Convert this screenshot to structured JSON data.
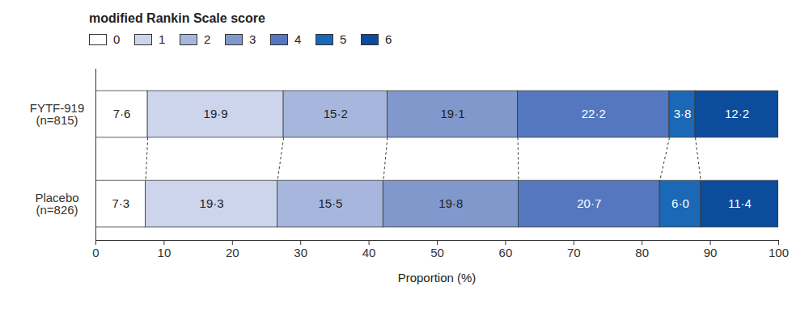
{
  "chart_data": {
    "type": "bar",
    "orientation": "horizontal",
    "stacked": true,
    "data_labels": true,
    "legend": "top-left",
    "legend_title": "modified Rankin Scale score",
    "categories": [
      "FYTF-919\n(n=815)",
      "Placebo\n(n=826)"
    ],
    "xlabel": "Proportion (%)",
    "xlim": [
      0,
      100
    ],
    "xticks": [
      0,
      10,
      20,
      30,
      40,
      50,
      60,
      70,
      80,
      90,
      100
    ],
    "series": [
      {
        "name": "0",
        "color": "#ffffff",
        "values": [
          7.6,
          7.3
        ],
        "value_labels": [
          "7·6",
          "7·3"
        ]
      },
      {
        "name": "1",
        "color": "#ccd5ec",
        "values": [
          19.9,
          19.3
        ],
        "value_labels": [
          "19·9",
          "19·3"
        ]
      },
      {
        "name": "2",
        "color": "#a6b6dc",
        "values": [
          15.2,
          15.5
        ],
        "value_labels": [
          "15·2",
          "15·5"
        ]
      },
      {
        "name": "3",
        "color": "#8198cc",
        "values": [
          19.1,
          19.8
        ],
        "value_labels": [
          "19·1",
          "19·8"
        ]
      },
      {
        "name": "4",
        "color": "#5577bf",
        "values": [
          22.2,
          20.7
        ],
        "value_labels": [
          "22·2",
          "20·7"
        ]
      },
      {
        "name": "5",
        "color": "#1a68b6",
        "values": [
          3.8,
          6.0
        ],
        "value_labels": [
          "3·8",
          "6·0"
        ]
      },
      {
        "name": "6",
        "color": "#0b4c9c",
        "values": [
          12.2,
          11.4
        ],
        "value_labels": [
          "12·2",
          "11·4"
        ]
      }
    ]
  }
}
